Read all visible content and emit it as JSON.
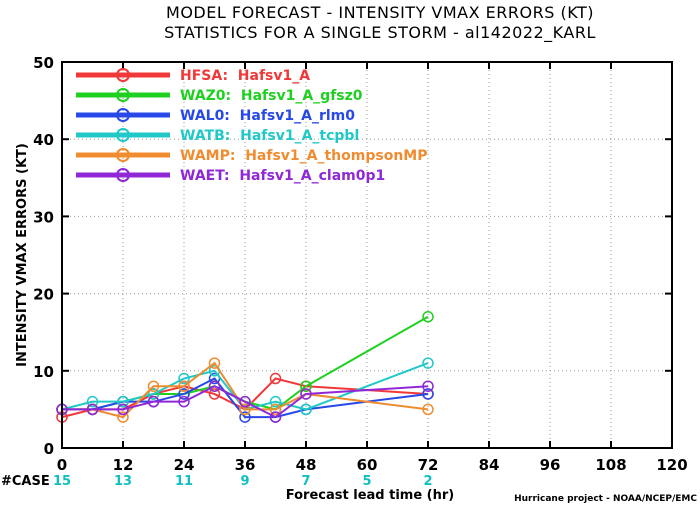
{
  "chart_data": {
    "type": "line",
    "title": "MODEL FORECAST - INTENSITY VMAX ERRORS (KT)",
    "subtitle": "STATISTICS FOR A SINGLE STORM - al142022_KARL",
    "xlabel": "Forecast lead time (hr)",
    "ylabel": "INTENSITY VMAX ERRORS (KT)",
    "xlim": [
      0,
      120
    ],
    "ylim": [
      0,
      50
    ],
    "xticks": [
      0,
      12,
      24,
      36,
      48,
      60,
      72,
      84,
      96,
      108,
      120
    ],
    "yticks": [
      0,
      10,
      20,
      30,
      40,
      50
    ],
    "grid": true,
    "legend_position": "top-left",
    "case_label": "#CASE",
    "cases": [
      {
        "x": 0,
        "n": "15"
      },
      {
        "x": 12,
        "n": "13"
      },
      {
        "x": 24,
        "n": "11"
      },
      {
        "x": 36,
        "n": "9"
      },
      {
        "x": 48,
        "n": "7"
      },
      {
        "x": 60,
        "n": "5"
      },
      {
        "x": 72,
        "n": "2"
      }
    ],
    "case_color": "#10c0c0",
    "credit": "Hurricane project - NOAA/NCEP/EMC",
    "series": [
      {
        "name": "HFSA:  Hafsv1_A",
        "color": "#f03838",
        "x": [
          0,
          6,
          12,
          18,
          24,
          30,
          36,
          42,
          48,
          72
        ],
        "y": [
          4,
          5,
          5,
          7,
          8,
          7,
          5,
          9,
          8,
          7
        ]
      },
      {
        "name": "WAZ0:  Hafsv1_A_gfsz0",
        "color": "#20d020",
        "x": [
          0,
          6,
          12,
          18,
          24,
          30,
          36,
          42,
          48,
          72
        ],
        "y": [
          5,
          5,
          6,
          7,
          7,
          8,
          6,
          5,
          8,
          17
        ]
      },
      {
        "name": "WAL0:  Hafsv1_A_rlm0",
        "color": "#2848e8",
        "x": [
          0,
          6,
          12,
          18,
          24,
          30,
          36,
          42,
          48,
          72
        ],
        "y": [
          5,
          5,
          6,
          6,
          7,
          9,
          4,
          4,
          5,
          7
        ]
      },
      {
        "name": "WATB:  Hafsv1_A_tcpbl",
        "color": "#20c8c8",
        "x": [
          0,
          6,
          12,
          18,
          24,
          30,
          36,
          42,
          48,
          72
        ],
        "y": [
          5,
          6,
          6,
          7,
          9,
          10,
          5,
          6,
          5,
          11
        ]
      },
      {
        "name": "WAMP:  Hafsv1_A_thompsonMP",
        "color": "#f08c30",
        "x": [
          0,
          6,
          12,
          18,
          24,
          30,
          36,
          42,
          48,
          72
        ],
        "y": [
          5,
          5,
          4,
          8,
          8,
          11,
          5,
          5,
          7,
          5
        ]
      },
      {
        "name": "WAET:  Hafsv1_A_clam0p1",
        "color": "#9028d8",
        "x": [
          0,
          6,
          12,
          18,
          24,
          30,
          36,
          42,
          48,
          72
        ],
        "y": [
          5,
          5,
          5,
          6,
          6,
          8,
          6,
          4,
          7,
          8
        ]
      }
    ]
  }
}
